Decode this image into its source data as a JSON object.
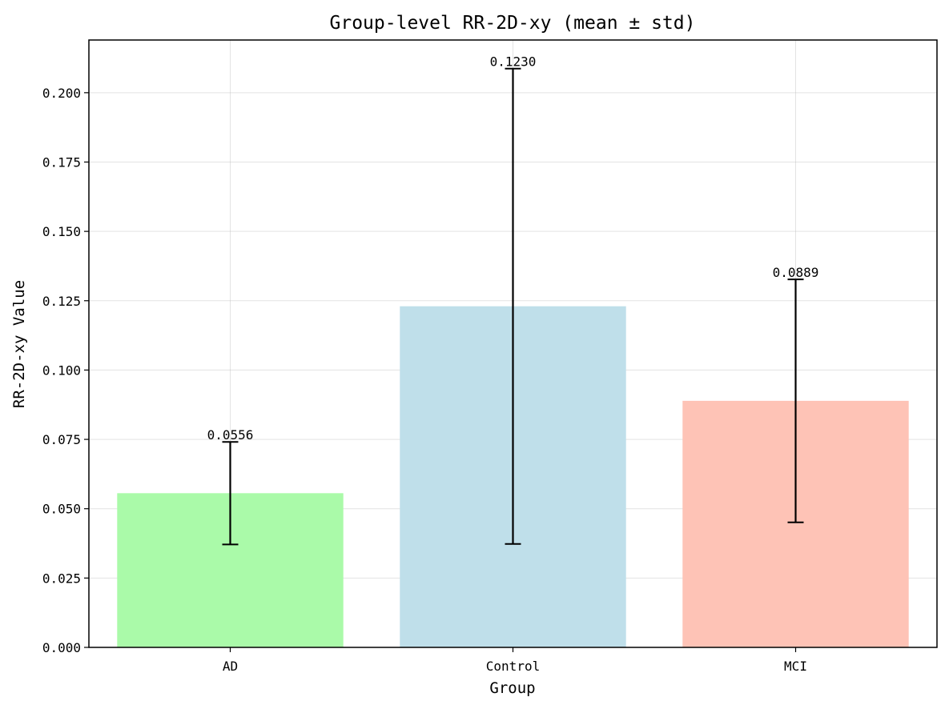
{
  "chart_data": {
    "type": "bar",
    "title": "Group-level RR-2D-xy (mean ± std)",
    "xlabel": "Group",
    "ylabel": "RR-2D-xy Value",
    "categories": [
      "AD",
      "Control",
      "MCI"
    ],
    "values": [
      0.0556,
      0.123,
      0.0889
    ],
    "errors": [
      0.0185,
      0.0857,
      0.0438
    ],
    "data_labels": [
      "0.0556",
      "0.1230",
      "0.0889"
    ],
    "colors": [
      "#aafaa9",
      "#bfdfea",
      "#fec3b6"
    ],
    "ylim": [
      0,
      0.219
    ],
    "yticks": [
      0,
      0.025,
      0.05,
      0.075,
      0.1,
      0.125,
      0.15,
      0.175,
      0.2
    ],
    "ytick_labels": [
      "0.000",
      "0.025",
      "0.050",
      "0.075",
      "0.100",
      "0.125",
      "0.150",
      "0.175",
      "0.200"
    ],
    "grid": true,
    "legend": "none"
  }
}
